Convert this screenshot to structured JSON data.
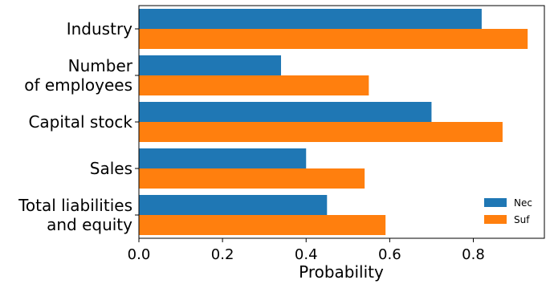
{
  "chart_data": {
    "type": "bar",
    "orientation": "horizontal",
    "categories": [
      "Industry",
      "Number\nof employees",
      "Capital stock",
      "Sales",
      "Total liabilities\nand equity"
    ],
    "series": [
      {
        "name": "Nec",
        "values": [
          0.82,
          0.34,
          0.7,
          0.4,
          0.45
        ],
        "color": "#1f77b4"
      },
      {
        "name": "Suf",
        "values": [
          0.93,
          0.55,
          0.87,
          0.54,
          0.59
        ],
        "color": "#ff7f0e"
      }
    ],
    "xlabel": "Probability",
    "ylabel": "",
    "title": "",
    "xlim": [
      0,
      0.97
    ],
    "xticks": [
      0.0,
      0.2,
      0.4,
      0.6,
      0.8
    ],
    "xtick_labels": [
      "0.0",
      "0.2",
      "0.4",
      "0.6",
      "0.8"
    ],
    "grid": false,
    "legend_position": "lower-right"
  }
}
